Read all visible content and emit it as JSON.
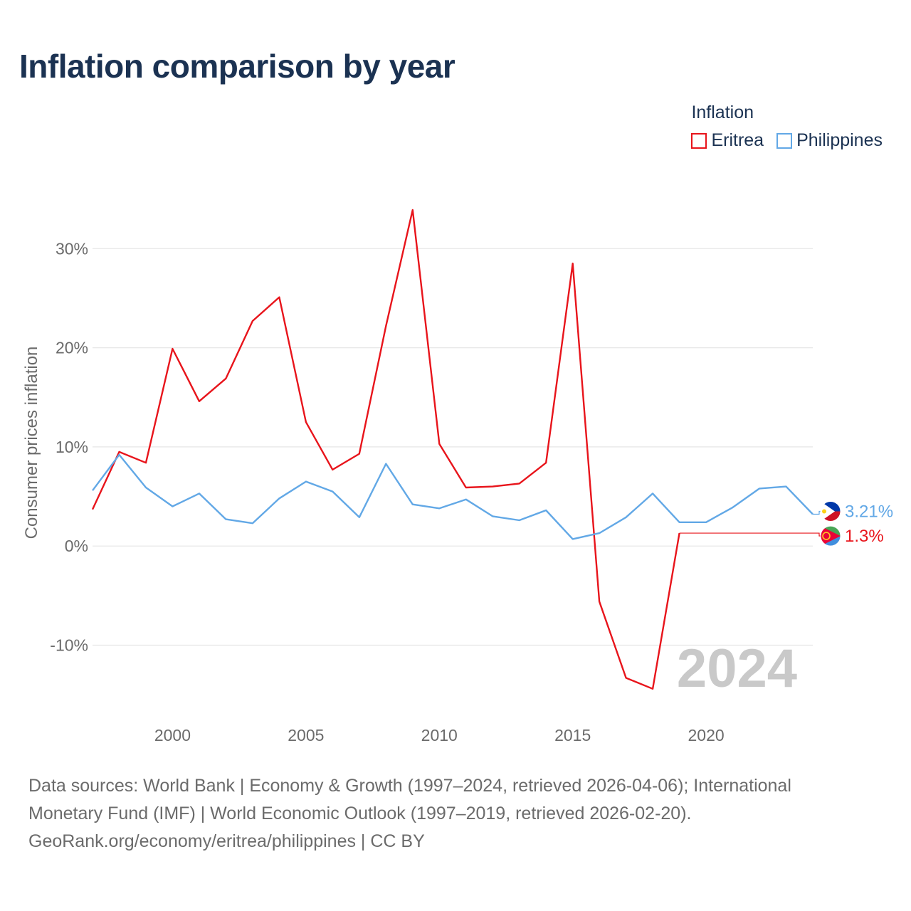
{
  "chart_data": {
    "type": "line",
    "title": "Inflation comparison by year",
    "ylabel": "Consumer prices inflation",
    "xlabel": "",
    "xlim": [
      1997,
      2024
    ],
    "ylim": [
      -17,
      40
    ],
    "yticks": [
      -10,
      0,
      10,
      20,
      30
    ],
    "ytick_labels": [
      "-10%",
      "0%",
      "10%",
      "20%",
      "30%"
    ],
    "xticks": [
      2000,
      2005,
      2010,
      2015,
      2020
    ],
    "xtick_labels": [
      "2000",
      "2005",
      "2010",
      "2015",
      "2020"
    ],
    "grid": true,
    "legend": {
      "title": "Inflation",
      "position": "top-right"
    },
    "year_watermark": "2024",
    "series": [
      {
        "name": "Eritrea",
        "color": "#e8141b",
        "end_label": "1.3%",
        "flag_icon": "eritrea-flag-icon",
        "x": [
          1997,
          1998,
          1999,
          2000,
          2001,
          2002,
          2003,
          2004,
          2005,
          2006,
          2007,
          2008,
          2009,
          2010,
          2011,
          2012,
          2013,
          2014,
          2015,
          2016,
          2017,
          2018,
          2019
        ],
        "values": [
          3.7,
          9.5,
          8.4,
          19.9,
          14.6,
          16.9,
          22.7,
          25.1,
          12.5,
          7.7,
          9.3,
          22.2,
          33.9,
          10.3,
          5.9,
          6.0,
          6.3,
          8.4,
          28.5,
          -5.6,
          -13.3,
          -14.4,
          1.3
        ]
      },
      {
        "name": "Philippines",
        "color": "#62a8e6",
        "end_label": "3.21%",
        "flag_icon": "philippines-flag-icon",
        "x": [
          1997,
          1998,
          1999,
          2000,
          2001,
          2002,
          2003,
          2004,
          2005,
          2006,
          2007,
          2008,
          2009,
          2010,
          2011,
          2012,
          2013,
          2014,
          2015,
          2016,
          2017,
          2018,
          2019,
          2020,
          2021,
          2022,
          2023,
          2024
        ],
        "values": [
          5.6,
          9.2,
          5.9,
          4.0,
          5.3,
          2.7,
          2.3,
          4.8,
          6.5,
          5.5,
          2.9,
          8.3,
          4.2,
          3.8,
          4.7,
          3.0,
          2.6,
          3.6,
          0.7,
          1.3,
          2.9,
          5.3,
          2.4,
          2.4,
          3.9,
          5.8,
          6.0,
          3.21
        ]
      }
    ]
  },
  "sources": {
    "line1": "Data sources: World Bank | Economy & Growth (1997–2024, retrieved 2026-04-06); International",
    "line2": "Monetary Fund (IMF) | World Economic Outlook (1997–2019, retrieved 2026-02-20).",
    "line3": "GeoRank.org/economy/eritrea/philippines | CC BY"
  }
}
